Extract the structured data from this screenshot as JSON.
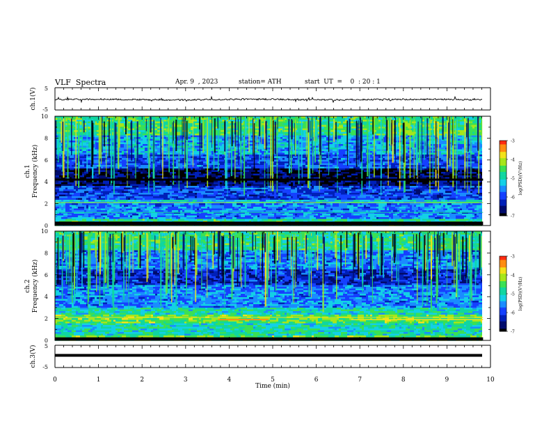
{
  "header": {
    "title": "VLF  Spectra",
    "date": "Apr. 9  , 2023",
    "station": "station= ATH",
    "start": "start  UT  =    0  : 20 : 1"
  },
  "chart_data": [
    {
      "type": "line",
      "panel": "ch1-waveform",
      "ylabel": "ch.1(V)",
      "ylim": [
        -5,
        5
      ],
      "yticks": [
        "5",
        "-5"
      ],
      "xlim": [
        0,
        10
      ],
      "series": [
        {
          "baseline": 0
        }
      ]
    },
    {
      "type": "heatmap",
      "panel": "ch1-spectrogram",
      "ylabel": "ch.1\nFrequency  (kHz)",
      "ylim": [
        0,
        10
      ],
      "yticks": [
        "0",
        "2",
        "4",
        "6",
        "8",
        "10"
      ],
      "xlim": [
        0,
        9.83
      ],
      "colorbar": {
        "label": "log(PSD)(V²/Hz)",
        "range": [
          -7,
          -3
        ],
        "ticks": [
          "-3",
          "-4",
          "-5",
          "-6",
          "-7"
        ]
      }
    },
    {
      "type": "heatmap",
      "panel": "ch2-spectrogram",
      "ylabel": "ch.2\nFrequency  (kHz)",
      "ylim": [
        0,
        10
      ],
      "yticks": [
        "0",
        "2",
        "4",
        "6",
        "8",
        "10"
      ],
      "xlim": [
        0,
        9.83
      ],
      "colorbar": {
        "label": "log(PSD)(V²/Hz)",
        "range": [
          -7,
          -3
        ],
        "ticks": [
          "-3",
          "-4",
          "-5",
          "-6",
          "-7"
        ]
      }
    },
    {
      "type": "line",
      "panel": "ch3-waveform",
      "ylabel": "ch.3(V)",
      "ylim": [
        -5,
        5
      ],
      "yticks": [
        "5",
        "-5"
      ],
      "xlim": [
        0,
        10
      ],
      "series": [
        {
          "constant": 0
        }
      ],
      "xlabel": "Time  (min)",
      "xticks": [
        "0",
        "1",
        "2",
        "3",
        "4",
        "5",
        "6",
        "7",
        "8",
        "9",
        "10"
      ]
    }
  ],
  "colors": {
    "palette": [
      "#000000",
      "#000b6c",
      "#0020b8",
      "#1540ff",
      "#1a8cff",
      "#13d0e6",
      "#10d6a0",
      "#3ae054",
      "#a6e61a",
      "#f2e21a",
      "#ff8c10",
      "#ff2a10",
      "#ffb4b4",
      "#ffffff"
    ]
  }
}
